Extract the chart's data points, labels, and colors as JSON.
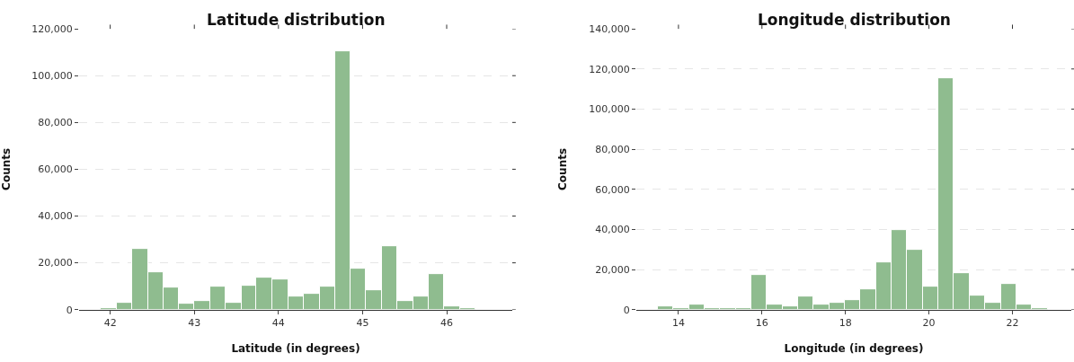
{
  "chart_data": [
    {
      "type": "histogram",
      "title": "Latitude distribution",
      "xlabel": "Latitude (in degrees)",
      "ylabel": "Counts",
      "color": "#8fbc8f",
      "bins": [
        41.89,
        42.08,
        42.26,
        42.45,
        42.63,
        42.82,
        43.0,
        43.19,
        43.37,
        43.56,
        43.74,
        43.93,
        44.12,
        44.3,
        44.49,
        44.67,
        44.86,
        45.04,
        45.23,
        45.41,
        45.6,
        45.79,
        45.97,
        46.16,
        46.34
      ],
      "values": [
        600,
        2900,
        26000,
        15900,
        9400,
        2500,
        3500,
        9800,
        2900,
        10200,
        13700,
        12900,
        5600,
        6700,
        9800,
        110500,
        17500,
        8200,
        27100,
        3500,
        5600,
        15300,
        1300,
        500
      ],
      "xlim": [
        41.63,
        46.78
      ],
      "xticks": [
        42,
        43,
        44,
        45,
        46
      ],
      "ylim": [
        0,
        120000
      ],
      "yticks": [
        0,
        {
          "value": 20000,
          "label": "20,000"
        },
        {
          "value": 40000,
          "label": "40,000"
        },
        {
          "value": 60000,
          "label": "60,000"
        },
        {
          "value": 80000,
          "label": "80,000"
        },
        {
          "value": 100000,
          "label": "100,000"
        },
        {
          "value": 120000,
          "label": "120,000"
        }
      ],
      "grid": "y"
    },
    {
      "type": "histogram",
      "title": "Longitude distribution",
      "xlabel": "Longitude (in degrees)",
      "ylabel": "Counts",
      "color": "#8fbc8f",
      "bins": [
        13.51,
        13.88,
        14.26,
        14.63,
        15.0,
        15.38,
        15.75,
        16.12,
        16.5,
        16.87,
        17.24,
        17.61,
        17.99,
        18.36,
        18.73,
        19.11,
        19.48,
        19.85,
        20.23,
        20.6,
        20.97,
        21.35,
        21.72,
        22.09,
        22.47,
        22.84
      ],
      "values": [
        1400,
        600,
        2700,
        500,
        900,
        900,
        17500,
        2300,
        1800,
        6400,
        2300,
        3500,
        4600,
        9900,
        23400,
        39600,
        29700,
        11300,
        115200,
        18000,
        7200,
        3500,
        12900,
        2700,
        900
      ],
      "xlim": [
        12.99,
        23.41
      ],
      "xticks": [
        14,
        16,
        18,
        20,
        22
      ],
      "ylim": [
        0,
        140000
      ],
      "yticks": [
        0,
        {
          "value": 20000,
          "label": "20,000"
        },
        {
          "value": 40000,
          "label": "40,000"
        },
        {
          "value": 60000,
          "label": "60,000"
        },
        {
          "value": 80000,
          "label": "80,000"
        },
        {
          "value": 100000,
          "label": "100,000"
        },
        {
          "value": 120000,
          "label": "120,000"
        },
        {
          "value": 140000,
          "label": "140,000"
        }
      ],
      "grid": "y"
    }
  ]
}
